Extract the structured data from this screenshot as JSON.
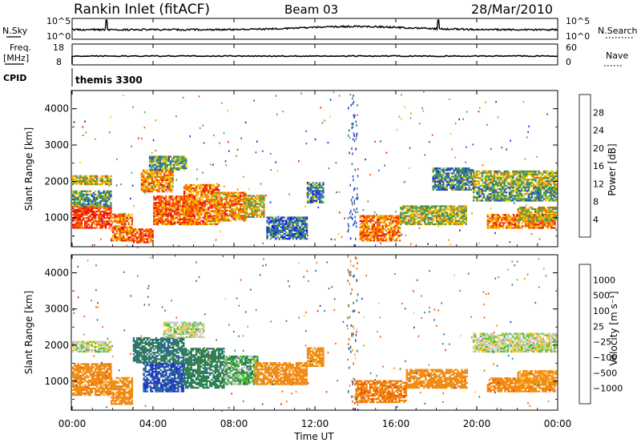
{
  "header": {
    "station": "Rankin Inlet (fitACF)",
    "beam": "Beam 03",
    "date": "28/Mar/2010"
  },
  "strip_labels": {
    "nsky": "N.Sky",
    "nsearch": "N.Search",
    "freq_line1": "Freq.",
    "freq_line2": "[MHz]",
    "nave": "Nave",
    "cpid": "CPID",
    "cpid_value": "themis 3300"
  },
  "noise_panel": {
    "left_ticks": [
      "10^5",
      "10^0"
    ],
    "right_ticks": [
      "10^5",
      "10^0"
    ]
  },
  "freq_panel": {
    "left_ticks": [
      "18",
      "8"
    ],
    "right_ticks": [
      "60",
      "0"
    ]
  },
  "colors": {
    "power": [
      "#1414e6",
      "#2850c8",
      "#3c8c64",
      "#50a050",
      "#f0c800",
      "#f08c00",
      "#ff5000",
      "#f01414"
    ],
    "velocity": [
      "#1e32c8",
      "#2c64a0",
      "#2e8050",
      "#50c832",
      "#c8c8c8",
      "#fac832",
      "#f08c14",
      "#f05a00",
      "#f01414"
    ]
  },
  "chart_data": [
    {
      "type": "heatmap",
      "title": "",
      "xlabel": "",
      "ylabel": "Slant Range [km]",
      "x_ticks": [
        "00:00",
        "04:00",
        "08:00",
        "12:00",
        "16:00",
        "20:00",
        "00:00"
      ],
      "x_range_hours": [
        0,
        24
      ],
      "y_ticks": [
        1000,
        2000,
        3000,
        4000
      ],
      "ylim": [
        200,
        4500
      ],
      "colorbar": {
        "label": "Power [dB]",
        "ticks": [
          4,
          8,
          12,
          16,
          20,
          24,
          28
        ],
        "range": [
          0,
          32
        ]
      },
      "regions": [
        {
          "t": [
            0.0,
            1.9
          ],
          "r": [
            700,
            1300
          ],
          "value": 28
        },
        {
          "t": [
            0.0,
            1.9
          ],
          "r": [
            1300,
            1750
          ],
          "value": 12
        },
        {
          "t": [
            0.0,
            1.9
          ],
          "r": [
            1900,
            2150
          ],
          "value": 18
        },
        {
          "t": [
            1.9,
            3.0
          ],
          "r": [
            350,
            1100
          ],
          "value": 24
        },
        {
          "t": [
            3.0,
            4.0
          ],
          "r": [
            300,
            700
          ],
          "value": 26
        },
        {
          "t": [
            3.4,
            5.0
          ],
          "r": [
            1700,
            2300
          ],
          "value": 22
        },
        {
          "t": [
            3.8,
            5.6
          ],
          "r": [
            2300,
            2700
          ],
          "value": 12
        },
        {
          "t": [
            4.0,
            6.0
          ],
          "r": [
            800,
            1600
          ],
          "value": 26
        },
        {
          "t": [
            5.5,
            7.2
          ],
          "r": [
            800,
            1900
          ],
          "value": 24
        },
        {
          "t": [
            7.0,
            8.6
          ],
          "r": [
            900,
            1700
          ],
          "value": 22
        },
        {
          "t": [
            8.5,
            9.5
          ],
          "r": [
            1000,
            1600
          ],
          "value": 18
        },
        {
          "t": [
            9.6,
            11.6
          ],
          "r": [
            400,
            1000
          ],
          "value": 8
        },
        {
          "t": [
            11.6,
            12.4
          ],
          "r": [
            1400,
            1950
          ],
          "value": 10
        },
        {
          "t": [
            14.2,
            16.2
          ],
          "r": [
            350,
            1050
          ],
          "value": 24
        },
        {
          "t": [
            16.2,
            19.5
          ],
          "r": [
            800,
            1300
          ],
          "value": 16
        },
        {
          "t": [
            17.8,
            19.8
          ],
          "r": [
            1750,
            2350
          ],
          "value": 10
        },
        {
          "t": [
            19.8,
            23.9
          ],
          "r": [
            1850,
            2300
          ],
          "value": 16
        },
        {
          "t": [
            19.8,
            23.9
          ],
          "r": [
            1450,
            1850
          ],
          "value": 12
        },
        {
          "t": [
            20.5,
            23.9
          ],
          "r": [
            700,
            1100
          ],
          "value": 24
        },
        {
          "t": [
            22.0,
            23.9
          ],
          "r": [
            900,
            1300
          ],
          "value": 18
        }
      ]
    },
    {
      "type": "heatmap",
      "title": "",
      "xlabel": "Time UT",
      "ylabel": "Slant Range [km]",
      "x_ticks": [
        "00:00",
        "04:00",
        "08:00",
        "12:00",
        "16:00",
        "20:00",
        "00:00"
      ],
      "x_range_hours": [
        0,
        24
      ],
      "y_ticks": [
        1000,
        2000,
        3000,
        4000
      ],
      "ylim": [
        200,
        4500
      ],
      "colorbar": {
        "label": "Velocity [m s⁻¹]",
        "ticks": [
          "1000",
          "500",
          "100",
          "25",
          "−25",
          "−100",
          "−500",
          "−1000"
        ]
      },
      "regions": [
        {
          "t": [
            0.0,
            1.9
          ],
          "r": [
            600,
            1500
          ],
          "value": -200
        },
        {
          "t": [
            0.0,
            1.9
          ],
          "r": [
            1800,
            2100
          ],
          "value": 0
        },
        {
          "t": [
            1.9,
            3.0
          ],
          "r": [
            350,
            1100
          ],
          "value": -150
        },
        {
          "t": [
            3.0,
            5.5
          ],
          "r": [
            1500,
            2200
          ],
          "value": 250
        },
        {
          "t": [
            3.5,
            5.5
          ],
          "r": [
            700,
            1500
          ],
          "value": 700
        },
        {
          "t": [
            4.5,
            6.5
          ],
          "r": [
            2200,
            2650
          ],
          "value": 0
        },
        {
          "t": [
            5.5,
            7.5
          ],
          "r": [
            800,
            1900
          ],
          "value": 200
        },
        {
          "t": [
            7.5,
            9.2
          ],
          "r": [
            900,
            1700
          ],
          "value": 60
        },
        {
          "t": [
            9.0,
            11.6
          ],
          "r": [
            900,
            1500
          ],
          "value": -150
        },
        {
          "t": [
            11.6,
            12.4
          ],
          "r": [
            1400,
            1900
          ],
          "value": -120
        },
        {
          "t": [
            14.0,
            16.5
          ],
          "r": [
            400,
            1000
          ],
          "value": -250
        },
        {
          "t": [
            16.5,
            19.5
          ],
          "r": [
            800,
            1300
          ],
          "value": -150
        },
        {
          "t": [
            19.8,
            23.9
          ],
          "r": [
            1800,
            2300
          ],
          "value": 0
        },
        {
          "t": [
            20.5,
            23.9
          ],
          "r": [
            700,
            1100
          ],
          "value": -200
        },
        {
          "t": [
            22.0,
            23.9
          ],
          "r": [
            900,
            1300
          ],
          "value": -100
        }
      ]
    }
  ]
}
